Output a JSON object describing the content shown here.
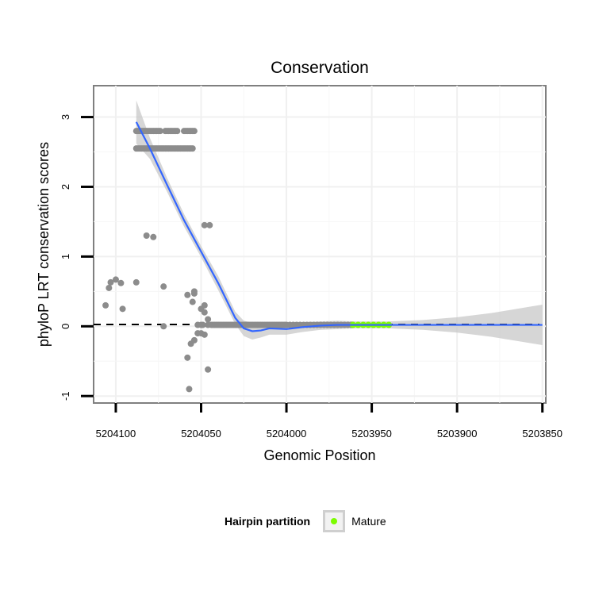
{
  "chart_data": {
    "type": "scatter",
    "title": "Conservation",
    "xlabel": "Genomic Position",
    "ylabel": "phyloP LRT conservation scores",
    "x_reversed": true,
    "xlim": [
      5204113,
      5203848
    ],
    "ylim": [
      -1.1,
      3.45
    ],
    "x_ticks": [
      5204100,
      5204050,
      5204000,
      5203950,
      5203900,
      5203850
    ],
    "x_tick_labels": [
      "5204100",
      "5204050",
      "5204000",
      "5203950",
      "5203900",
      "5203850"
    ],
    "y_ticks": [
      -1,
      0,
      1,
      2,
      3
    ],
    "y_tick_labels": [
      "-1",
      "0",
      "1",
      "2",
      "3"
    ],
    "grid": true,
    "reference_line": {
      "y": 0,
      "style": "dashed"
    },
    "series": [
      {
        "kind": "points",
        "color": "#8c8c8c",
        "points": [
          [
            5204088,
            2.8
          ],
          [
            5204087,
            2.8
          ],
          [
            5204086,
            2.8
          ],
          [
            5204085,
            2.8
          ],
          [
            5204084,
            2.8
          ],
          [
            5204083,
            2.8
          ],
          [
            5204082,
            2.8
          ],
          [
            5204081,
            2.8
          ],
          [
            5204080,
            2.8
          ],
          [
            5204079,
            2.8
          ],
          [
            5204078,
            2.8
          ],
          [
            5204077,
            2.8
          ],
          [
            5204076,
            2.8
          ],
          [
            5204075,
            2.8
          ],
          [
            5204074,
            2.8
          ],
          [
            5204071,
            2.8
          ],
          [
            5204070,
            2.8
          ],
          [
            5204069,
            2.8
          ],
          [
            5204068,
            2.8
          ],
          [
            5204067,
            2.8
          ],
          [
            5204066,
            2.8
          ],
          [
            5204065,
            2.8
          ],
          [
            5204064,
            2.8
          ],
          [
            5204060,
            2.8
          ],
          [
            5204059,
            2.8
          ],
          [
            5204058,
            2.8
          ],
          [
            5204057,
            2.8
          ],
          [
            5204056,
            2.8
          ],
          [
            5204055,
            2.8
          ],
          [
            5204054,
            2.8
          ],
          [
            5204088,
            2.55
          ],
          [
            5204087,
            2.55
          ],
          [
            5204086,
            2.55
          ],
          [
            5204085,
            2.55
          ],
          [
            5204084,
            2.55
          ],
          [
            5204083,
            2.55
          ],
          [
            5204082,
            2.55
          ],
          [
            5204081,
            2.55
          ],
          [
            5204080,
            2.55
          ],
          [
            5204079,
            2.55
          ],
          [
            5204078,
            2.55
          ],
          [
            5204077,
            2.55
          ],
          [
            5204076,
            2.55
          ],
          [
            5204075,
            2.55
          ],
          [
            5204074,
            2.55
          ],
          [
            5204073,
            2.55
          ],
          [
            5204072,
            2.55
          ],
          [
            5204071,
            2.55
          ],
          [
            5204070,
            2.55
          ],
          [
            5204069,
            2.55
          ],
          [
            5204068,
            2.55
          ],
          [
            5204067,
            2.55
          ],
          [
            5204066,
            2.55
          ],
          [
            5204065,
            2.55
          ],
          [
            5204064,
            2.55
          ],
          [
            5204063,
            2.55
          ],
          [
            5204062,
            2.55
          ],
          [
            5204061,
            2.55
          ],
          [
            5204060,
            2.55
          ],
          [
            5204059,
            2.55
          ],
          [
            5204058,
            2.55
          ],
          [
            5204057,
            2.55
          ],
          [
            5204056,
            2.55
          ],
          [
            5204055,
            2.55
          ],
          [
            5204082,
            1.3
          ],
          [
            5204078,
            1.28
          ],
          [
            5204048,
            1.45
          ],
          [
            5204045,
            1.45
          ],
          [
            5204103,
            0.63
          ],
          [
            5204100,
            0.67
          ],
          [
            5204097,
            0.62
          ],
          [
            5204088,
            0.63
          ],
          [
            5204072,
            0.57
          ],
          [
            5204058,
            0.45
          ],
          [
            5204054,
            0.5
          ],
          [
            5204104,
            0.55
          ],
          [
            5204106,
            0.3
          ],
          [
            5204096,
            0.25
          ],
          [
            5204055,
            0.35
          ],
          [
            5204048,
            0.3
          ],
          [
            5204050,
            0.25
          ],
          [
            5204054,
            0.47
          ],
          [
            5204048,
            0.2
          ],
          [
            5204046,
            0.1
          ],
          [
            5204052,
            0.02
          ],
          [
            5204050,
            0.02
          ],
          [
            5204049,
            0.02
          ],
          [
            5204046,
            0.02
          ],
          [
            5204044,
            0.02
          ],
          [
            5204043,
            0.02
          ],
          [
            5204042,
            0.02
          ],
          [
            5204041,
            0.02
          ],
          [
            5204040,
            0.02
          ],
          [
            5204039,
            0.02
          ],
          [
            5204038,
            0.02
          ],
          [
            5204037,
            0.02
          ],
          [
            5204036,
            0.02
          ],
          [
            5204035,
            0.02
          ],
          [
            5204034,
            0.02
          ],
          [
            5204033,
            0.02
          ],
          [
            5204032,
            0.02
          ],
          [
            5204031,
            0.02
          ],
          [
            5204030,
            0.02
          ],
          [
            5204029,
            0.02
          ],
          [
            5204028,
            0.02
          ],
          [
            5204027,
            0.02
          ],
          [
            5204026,
            0.02
          ],
          [
            5204025,
            0.02
          ],
          [
            5204024,
            0.02
          ],
          [
            5204023,
            0.02
          ],
          [
            5204022,
            0.02
          ],
          [
            5204021,
            0.02
          ],
          [
            5204020,
            0.02
          ],
          [
            5204019,
            0.02
          ],
          [
            5204018,
            0.02
          ],
          [
            5204017,
            0.02
          ],
          [
            5204016,
            0.02
          ],
          [
            5204015,
            0.02
          ],
          [
            5204014,
            0.02
          ],
          [
            5204013,
            0.02
          ],
          [
            5204012,
            0.02
          ],
          [
            5204011,
            0.02
          ],
          [
            5204010,
            0.02
          ],
          [
            5204009,
            0.02
          ],
          [
            5204008,
            0.02
          ],
          [
            5204007,
            0.02
          ],
          [
            5204006,
            0.02
          ],
          [
            5204005,
            0.02
          ],
          [
            5204004,
            0.02
          ],
          [
            5204003,
            0.02
          ],
          [
            5204002,
            0.02
          ],
          [
            5204001,
            0.02
          ],
          [
            5204000,
            0.02
          ],
          [
            5203998,
            0.02
          ],
          [
            5203996,
            0.02
          ],
          [
            5203994,
            0.02
          ],
          [
            5203992,
            0.02
          ],
          [
            5203990,
            0.02
          ],
          [
            5203988,
            0.02
          ],
          [
            5203986,
            0.02
          ],
          [
            5203984,
            0.02
          ],
          [
            5203982,
            0.02
          ],
          [
            5203980,
            0.02
          ],
          [
            5203978,
            0.02
          ],
          [
            5203976,
            0.02
          ],
          [
            5203974,
            0.02
          ],
          [
            5203972,
            0.02
          ],
          [
            5203970,
            0.02
          ],
          [
            5203968,
            0.02
          ],
          [
            5203966,
            0.02
          ],
          [
            5203964,
            0.02
          ],
          [
            5203962,
            0.02
          ],
          [
            5204072,
            0.0
          ],
          [
            5204052,
            -0.1
          ],
          [
            5204050,
            -0.1
          ],
          [
            5204048,
            -0.12
          ],
          [
            5204054,
            -0.2
          ],
          [
            5204056,
            -0.25
          ],
          [
            5204058,
            -0.45
          ],
          [
            5204046,
            -0.62
          ],
          [
            5204057,
            -0.9
          ]
        ]
      },
      {
        "kind": "points",
        "name": "Mature",
        "color": "#7CFC00",
        "points": [
          [
            5203961,
            0.02
          ],
          [
            5203958,
            0.02
          ],
          [
            5203955,
            0.02
          ],
          [
            5203952,
            0.02
          ],
          [
            5203949,
            0.02
          ],
          [
            5203946,
            0.02
          ],
          [
            5203943,
            0.02
          ],
          [
            5203940,
            0.02
          ]
        ]
      },
      {
        "kind": "smooth",
        "color": "#3366FF",
        "band_color": "#c8c8c8",
        "x": [
          5204088,
          5204080,
          5204070,
          5204060,
          5204050,
          5204040,
          5204030,
          5204025,
          5204020,
          5204015,
          5204010,
          5204000,
          5203990,
          5203980,
          5203970,
          5203960,
          5203950,
          5203940,
          5203930,
          5203920,
          5203910,
          5203900,
          5203890,
          5203880,
          5203870,
          5203860,
          5203850
        ],
        "y": [
          2.93,
          2.55,
          2.03,
          1.52,
          1.07,
          0.62,
          0.12,
          -0.03,
          -0.07,
          -0.06,
          -0.03,
          -0.04,
          -0.01,
          0.01,
          0.02,
          0.02,
          0.02,
          0.02,
          0.02,
          0.02,
          0.02,
          0.02,
          0.02,
          0.02,
          0.02,
          0.02,
          0.02
        ],
        "lower": [
          2.62,
          2.4,
          1.93,
          1.43,
          0.99,
          0.52,
          0.03,
          -0.14,
          -0.19,
          -0.16,
          -0.12,
          -0.12,
          -0.08,
          -0.05,
          -0.04,
          -0.03,
          -0.03,
          -0.03,
          -0.04,
          -0.05,
          -0.07,
          -0.09,
          -0.12,
          -0.15,
          -0.19,
          -0.23,
          -0.27
        ],
        "upper": [
          3.24,
          2.7,
          2.13,
          1.61,
          1.15,
          0.72,
          0.21,
          0.08,
          0.05,
          0.04,
          0.06,
          0.04,
          0.06,
          0.07,
          0.08,
          0.07,
          0.07,
          0.07,
          0.08,
          0.09,
          0.11,
          0.13,
          0.16,
          0.19,
          0.23,
          0.27,
          0.31
        ]
      }
    ],
    "legend": {
      "title": "Hairpin partition",
      "position": "bottom",
      "entries": [
        {
          "label": "Mature",
          "color": "#7CFC00"
        }
      ]
    }
  }
}
